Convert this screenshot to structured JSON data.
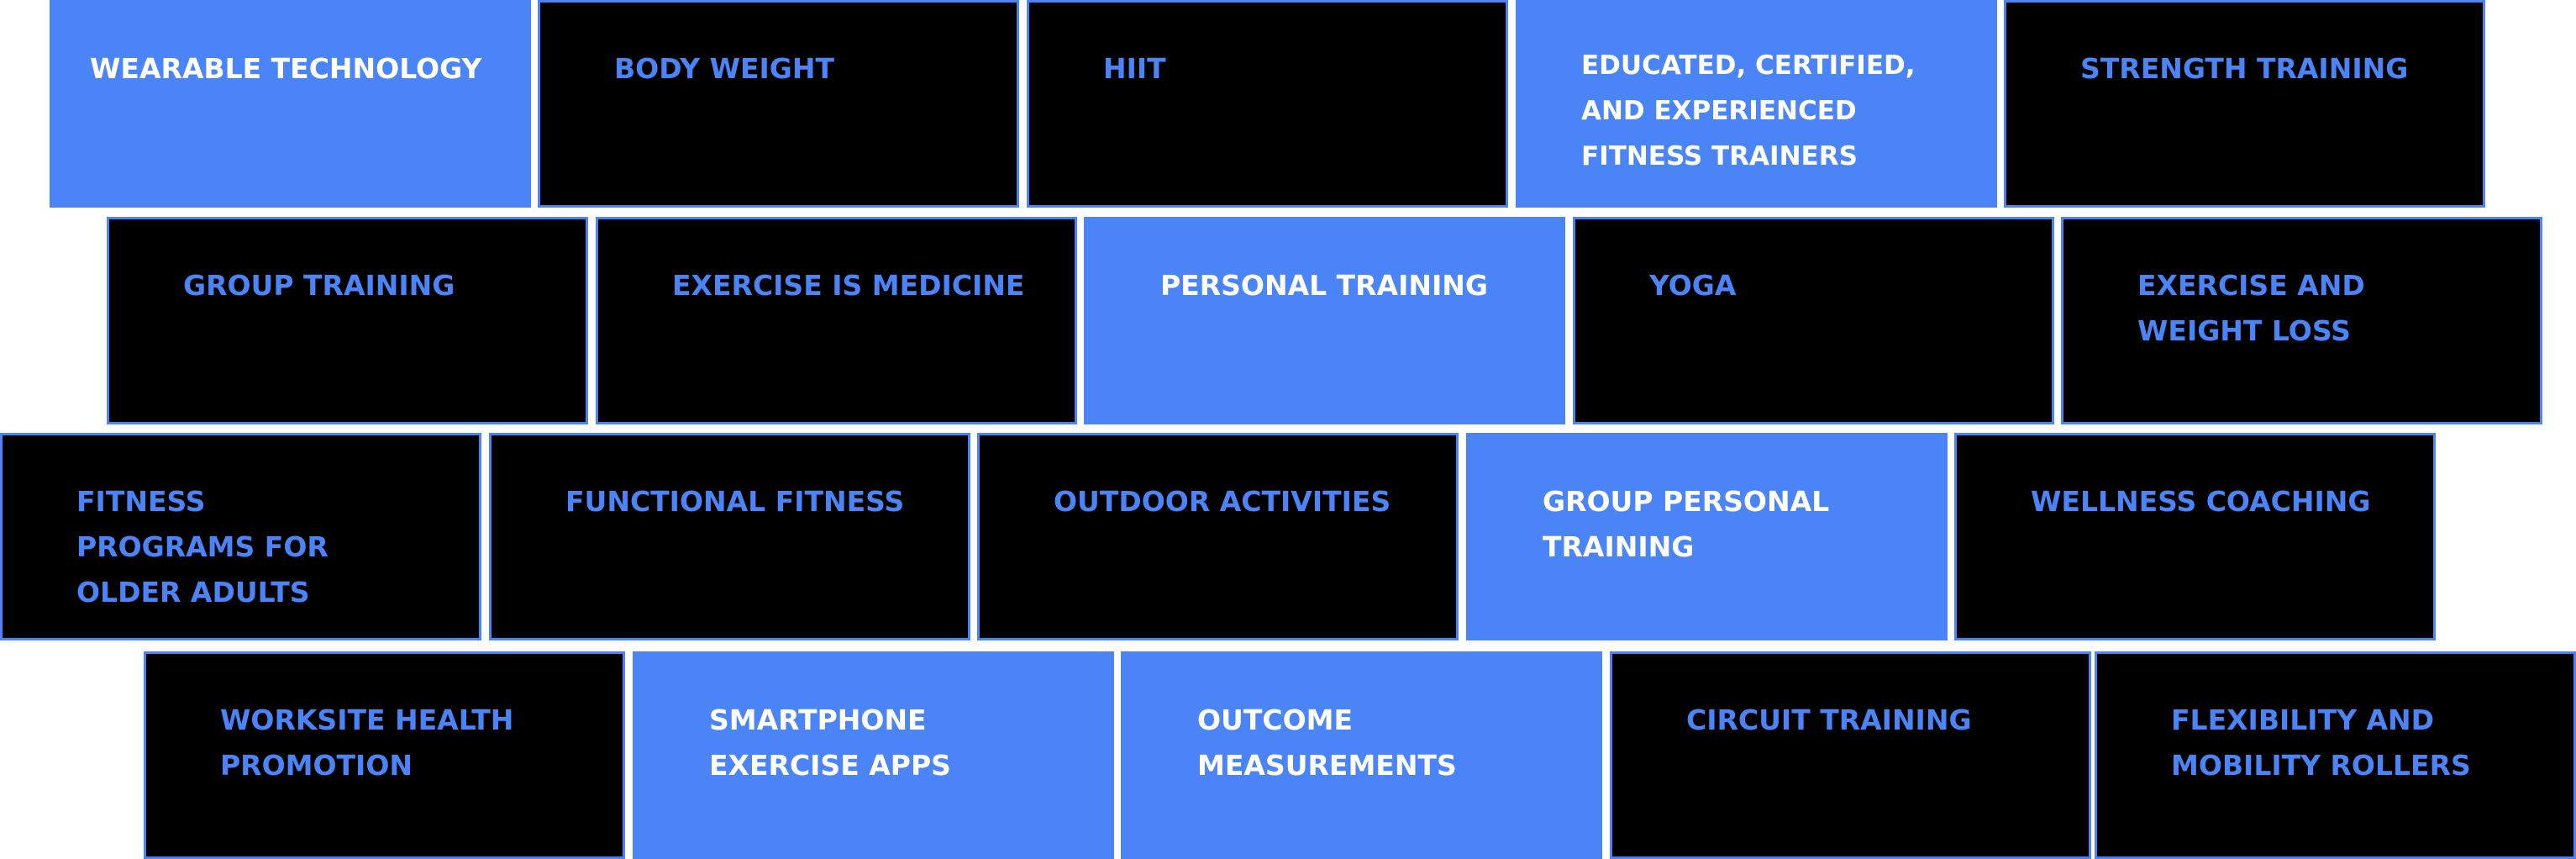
{
  "colors": {
    "accent": "#4a84f6",
    "tile_dark": "#000000",
    "text_on_filled": "#ffffff"
  },
  "rows": [
    {
      "tiles": [
        {
          "label": "WEARABLE TECHNOLOGY",
          "filled": true
        },
        {
          "label": "BODY WEIGHT",
          "filled": false
        },
        {
          "label": "HIIT",
          "filled": false
        },
        {
          "label": "EDUCATED, CERTIFIED, AND EXPERIENCED FITNESS TRAINERS",
          "filled": true
        },
        {
          "label": "STRENGTH TRAINING",
          "filled": false
        }
      ]
    },
    {
      "tiles": [
        {
          "label": "GROUP TRAINING",
          "filled": false
        },
        {
          "label": "EXERCISE IS MEDICINE",
          "filled": false
        },
        {
          "label": "PERSONAL TRAINING",
          "filled": true
        },
        {
          "label": "YOGA",
          "filled": false
        },
        {
          "label": "EXERCISE AND WEIGHT LOSS",
          "filled": false
        }
      ]
    },
    {
      "tiles": [
        {
          "label": "FITNESS PROGRAMS FOR OLDER ADULTS",
          "filled": false
        },
        {
          "label": "FUNCTIONAL FITNESS",
          "filled": false
        },
        {
          "label": "OUTDOOR ACTIVITIES",
          "filled": false
        },
        {
          "label": "GROUP PERSONAL TRAINING",
          "filled": true
        },
        {
          "label": "WELLNESS COACHING",
          "filled": false
        }
      ]
    },
    {
      "tiles": [
        {
          "label": "WORKSITE HEALTH PROMOTION",
          "filled": false
        },
        {
          "label": "SMARTPHONE EXERCISE APPS",
          "filled": true
        },
        {
          "label": "OUTCOME MEASUREMENTS",
          "filled": true
        },
        {
          "label": "CIRCUIT TRAINING",
          "filled": false
        },
        {
          "label": "FLEXIBILITY AND MOBILITY ROLLERS",
          "filled": false
        }
      ]
    }
  ]
}
